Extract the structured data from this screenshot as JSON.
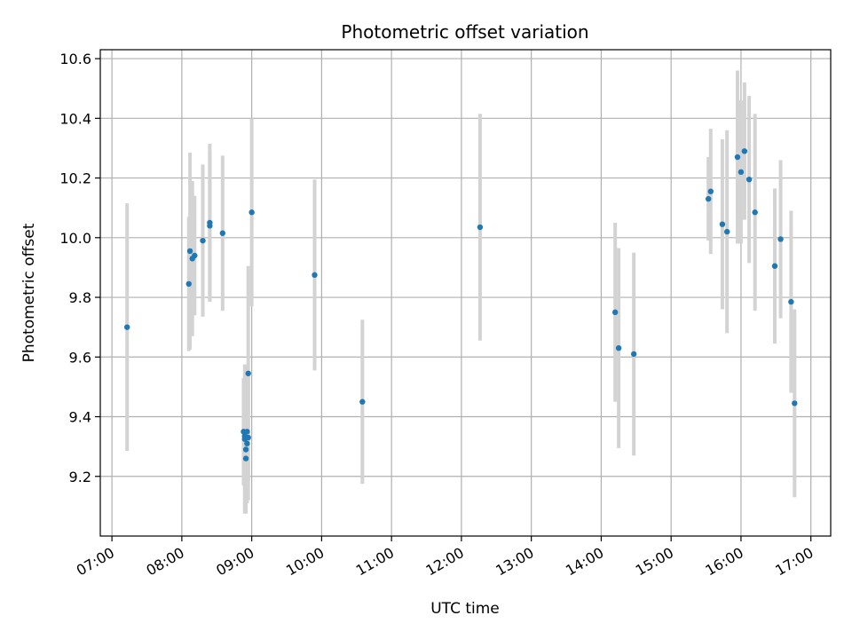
{
  "chart_data": {
    "type": "scatter",
    "title": "Photometric offset variation",
    "xlabel": "UTC time",
    "ylabel": "Photometric offset",
    "x_ticks": [
      "07:00",
      "08:00",
      "09:00",
      "10:00",
      "11:00",
      "12:00",
      "13:00",
      "14:00",
      "15:00",
      "16:00",
      "17:00"
    ],
    "y_ticks": [
      "9.2",
      "9.4",
      "9.6",
      "9.8",
      "10.0",
      "10.2",
      "10.4",
      "10.6"
    ],
    "xlim": [
      "06:50",
      "17:17"
    ],
    "ylim": [
      9.0,
      10.63
    ],
    "grid": true,
    "marker_color": "#1f77b4",
    "errorbar_color": "#d3d3d3",
    "points": [
      {
        "t": "07:13",
        "y": 9.7,
        "err": 0.415
      },
      {
        "t": "08:06",
        "y": 9.845,
        "err": 0.225
      },
      {
        "t": "08:07",
        "y": 9.955,
        "err": 0.33
      },
      {
        "t": "08:09",
        "y": 9.93,
        "err": 0.26
      },
      {
        "t": "08:11",
        "y": 9.94,
        "err": 0.2
      },
      {
        "t": "08:18",
        "y": 9.99,
        "err": 0.255
      },
      {
        "t": "08:24",
        "y": 10.04,
        "err": 0.25
      },
      {
        "t": "08:24",
        "y": 10.05,
        "err": 0.265
      },
      {
        "t": "08:35",
        "y": 10.015,
        "err": 0.26
      },
      {
        "t": "08:53",
        "y": 9.35,
        "err": 0.18
      },
      {
        "t": "08:54",
        "y": 9.335,
        "err": 0.19
      },
      {
        "t": "08:54",
        "y": 9.325,
        "err": 0.25
      },
      {
        "t": "08:55",
        "y": 9.26,
        "err": 0.185
      },
      {
        "t": "08:55",
        "y": 9.29,
        "err": 0.18
      },
      {
        "t": "08:56",
        "y": 9.35,
        "err": 0.22
      },
      {
        "t": "08:56",
        "y": 9.31,
        "err": 0.2
      },
      {
        "t": "08:57",
        "y": 9.33,
        "err": 0.21
      },
      {
        "t": "08:57",
        "y": 9.545,
        "err": 0.36
      },
      {
        "t": "09:00",
        "y": 10.085,
        "err": 0.315
      },
      {
        "t": "09:54",
        "y": 9.875,
        "err": 0.32
      },
      {
        "t": "10:35",
        "y": 9.45,
        "err": 0.275
      },
      {
        "t": "12:16",
        "y": 10.035,
        "err": 0.38
      },
      {
        "t": "14:12",
        "y": 9.75,
        "err": 0.3
      },
      {
        "t": "14:15",
        "y": 9.63,
        "err": 0.335
      },
      {
        "t": "14:28",
        "y": 9.61,
        "err": 0.34
      },
      {
        "t": "15:32",
        "y": 10.13,
        "err": 0.14
      },
      {
        "t": "15:34",
        "y": 10.155,
        "err": 0.21
      },
      {
        "t": "15:44",
        "y": 10.045,
        "err": 0.285
      },
      {
        "t": "15:48",
        "y": 10.02,
        "err": 0.34
      },
      {
        "t": "15:57",
        "y": 10.27,
        "err": 0.29
      },
      {
        "t": "16:00",
        "y": 10.22,
        "err": 0.24
      },
      {
        "t": "16:03",
        "y": 10.29,
        "err": 0.23
      },
      {
        "t": "16:07",
        "y": 10.195,
        "err": 0.28
      },
      {
        "t": "16:12",
        "y": 10.085,
        "err": 0.33
      },
      {
        "t": "16:29",
        "y": 9.905,
        "err": 0.26
      },
      {
        "t": "16:34",
        "y": 9.995,
        "err": 0.265
      },
      {
        "t": "16:43",
        "y": 9.785,
        "err": 0.305
      },
      {
        "t": "16:46",
        "y": 9.445,
        "err": 0.315
      }
    ]
  }
}
